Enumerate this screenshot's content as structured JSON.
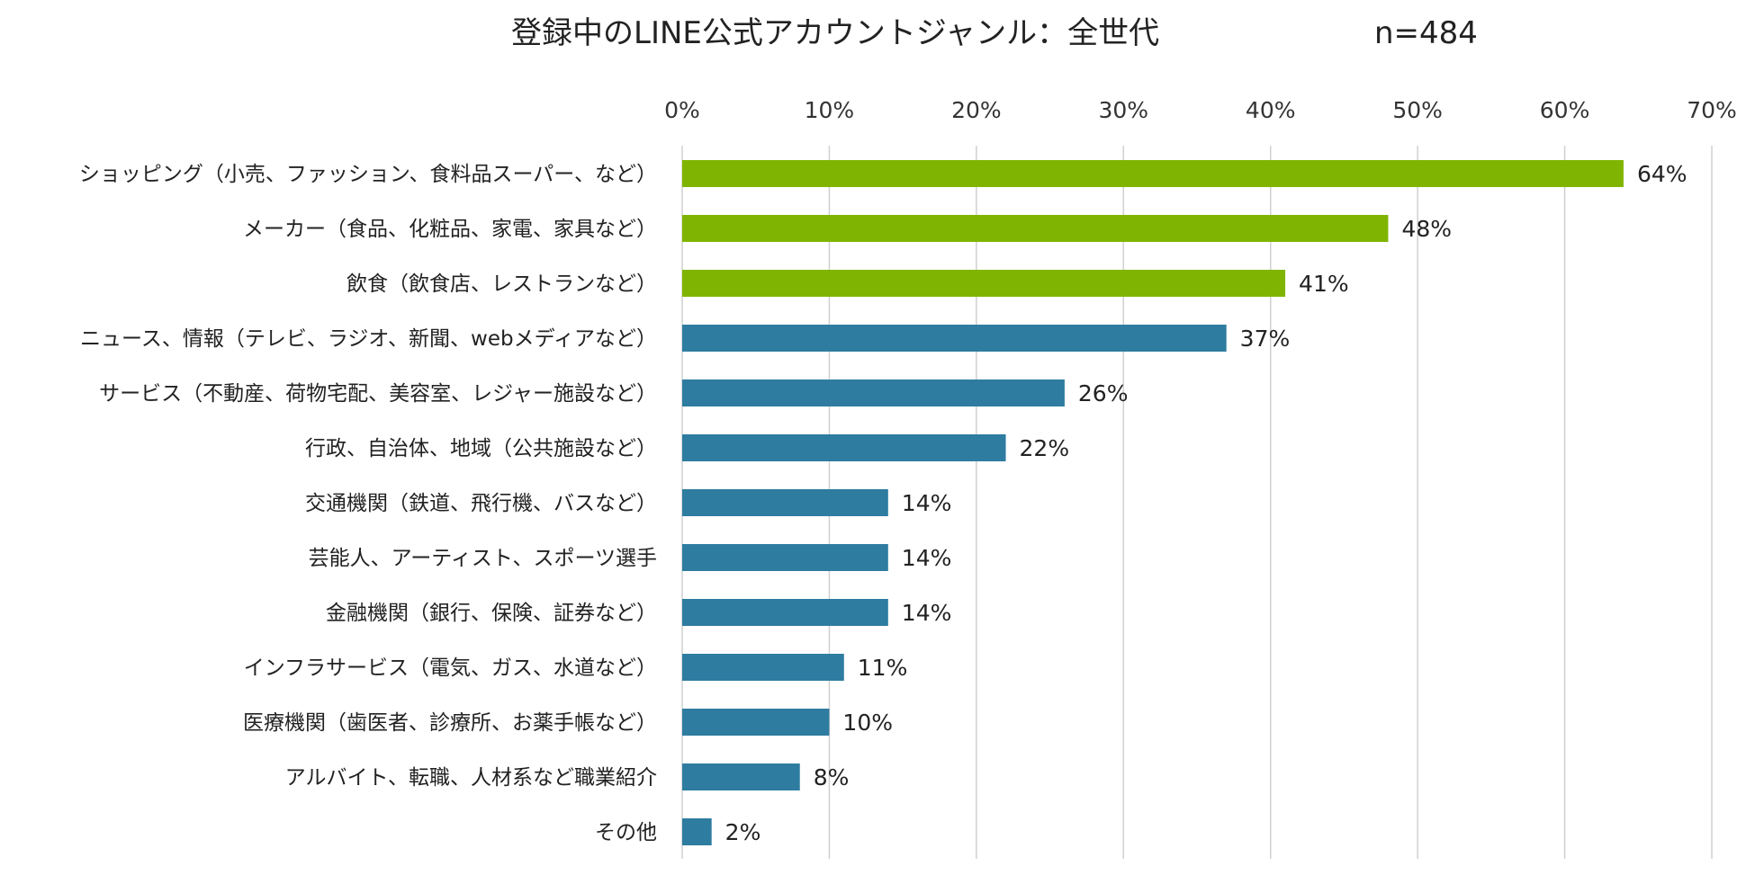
{
  "chart_data": {
    "type": "bar",
    "orientation": "horizontal",
    "title": "登録中のLINE公式アカウントジャンル：全世代",
    "sample_size": "n=484",
    "xlim": [
      0,
      70
    ],
    "x_ticks": [
      "0%",
      "10%",
      "20%",
      "30%",
      "40%",
      "50%",
      "60%",
      "70%"
    ],
    "x_tick_values": [
      0,
      10,
      20,
      30,
      40,
      50,
      60,
      70
    ],
    "grid": true,
    "colors": {
      "highlight": "#7fb502",
      "default": "#2e7ca0"
    },
    "categories": [
      "ショッピング（小売、ファッション、食料品スーパー、など）",
      "メーカー（食品、化粧品、家電、家具など）",
      "飲食（飲食店、レストランなど）",
      "ニュース、情報（テレビ、ラジオ、新聞、webメディアなど）",
      "サービス（不動産、荷物宅配、美容室、レジャー施設など）",
      "行政、自治体、地域（公共施設など）",
      "交通機関（鉄道、飛行機、バスなど）",
      "芸能人、アーティスト、スポーツ選手",
      "金融機関（銀行、保険、証券など）",
      "インフラサービス（電気、ガス、水道など）",
      "医療機関（歯医者、診療所、お薬手帳など）",
      "アルバイト、転職、人材系など職業紹介",
      "その他"
    ],
    "values": [
      64,
      48,
      41,
      37,
      26,
      22,
      14,
      14,
      14,
      11,
      10,
      8,
      2
    ],
    "value_labels": [
      "64%",
      "48%",
      "41%",
      "37%",
      "26%",
      "22%",
      "14%",
      "14%",
      "14%",
      "11%",
      "10%",
      "8%",
      "2%"
    ],
    "highlighted": [
      true,
      true,
      true,
      false,
      false,
      false,
      false,
      false,
      false,
      false,
      false,
      false,
      false
    ]
  }
}
